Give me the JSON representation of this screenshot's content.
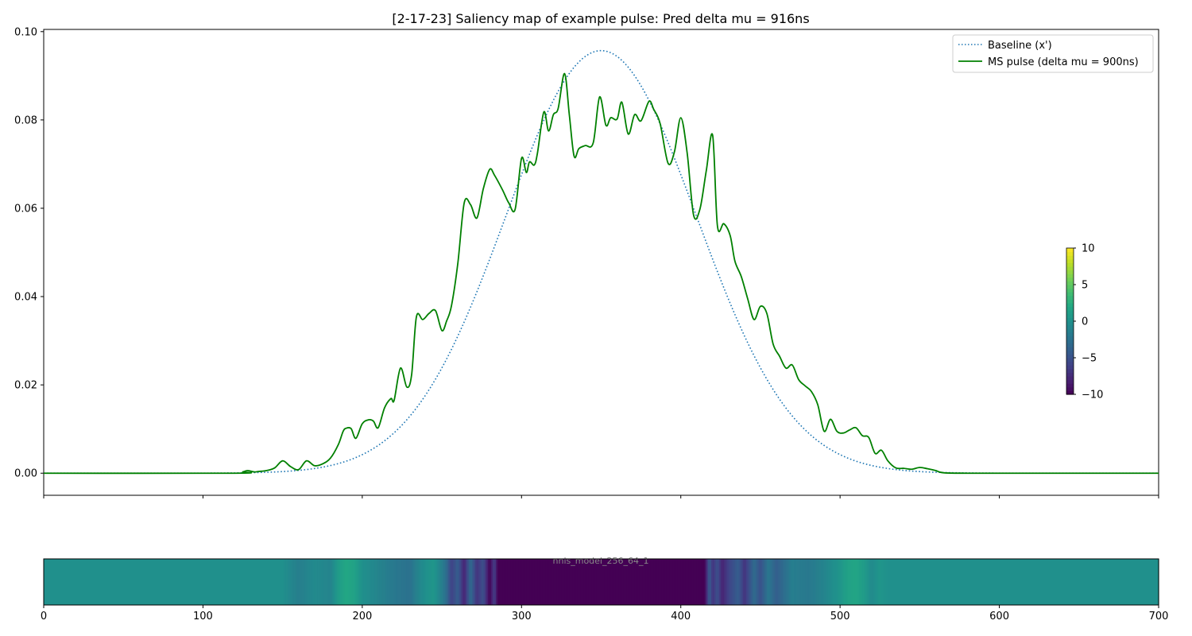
{
  "chart_data": [
    {
      "type": "line",
      "title": "[2-17-23] Saliency map of example pulse: Pred delta mu = 916ns",
      "xlabel": "",
      "ylabel": "",
      "xlim": [
        0,
        700
      ],
      "ylim": [
        -0.005,
        0.1005
      ],
      "x_ticks": [
        0,
        100,
        200,
        300,
        400,
        500,
        600,
        700
      ],
      "x_tick_labels_shown": false,
      "y_ticks": [
        0.0,
        0.02,
        0.04,
        0.06,
        0.08,
        0.1
      ],
      "y_tick_labels": [
        "0.00",
        "0.02",
        "0.04",
        "0.06",
        "0.08",
        "0.10"
      ],
      "grid": false,
      "legend_position": "top-right",
      "series": [
        {
          "name": "Baseline (x')",
          "style": "dotted",
          "color": "#1f77b4",
          "model": "gaussian",
          "amplitude": 0.0957,
          "center": 350,
          "sigma": 60,
          "x": [
            0,
            120,
            150,
            180,
            200,
            220,
            240,
            260,
            280,
            300,
            320,
            340,
            350,
            360,
            380,
            400,
            420,
            440,
            460,
            480,
            500,
            520,
            540,
            560,
            580,
            700
          ],
          "values": [
            0,
            0.0004,
            0.0008,
            0.0023,
            0.0048,
            0.0091,
            0.0163,
            0.0279,
            0.0404,
            0.0674,
            0.0843,
            0.0944,
            0.0957,
            0.0944,
            0.0843,
            0.0674,
            0.0404,
            0.0249,
            0.0138,
            0.0068,
            0.0031,
            0.0012,
            0.0006,
            0.0003,
            0.0001,
            0
          ]
        },
        {
          "name": "MS pulse (delta mu = 900ns)",
          "style": "solid",
          "color": "#008000",
          "x": [
            0,
            120,
            125,
            128,
            132,
            135,
            140,
            145,
            150,
            155,
            160,
            165,
            170,
            175,
            180,
            185,
            188,
            190,
            193,
            196,
            200,
            204,
            207,
            210,
            214,
            218,
            220,
            224,
            228,
            231,
            234,
            238,
            242,
            246,
            250,
            253,
            256,
            260,
            264,
            268,
            272,
            276,
            280,
            283,
            288,
            292,
            296,
            300,
            303,
            305,
            308,
            310,
            314,
            317,
            320,
            323,
            327,
            330,
            333,
            336,
            340,
            345,
            349,
            353,
            356,
            360,
            363,
            367,
            371,
            375,
            380,
            383,
            387,
            392,
            396,
            400,
            404,
            408,
            412,
            416,
            420,
            423,
            427,
            431,
            434,
            438,
            442,
            446,
            450,
            454,
            458,
            462,
            466,
            470,
            474,
            478,
            482,
            486,
            490,
            494,
            498,
            502,
            506,
            510,
            514,
            518,
            522,
            526,
            530,
            535,
            540,
            545,
            550,
            555,
            560,
            565,
            580,
            600,
            700
          ],
          "values": [
            0,
            0,
            0.0003,
            0.0006,
            0.0003,
            0.0004,
            0.0006,
            0.0012,
            0.0028,
            0.0015,
            0.0008,
            0.0028,
            0.0017,
            0.0021,
            0.0034,
            0.0065,
            0.0095,
            0.0102,
            0.0101,
            0.0079,
            0.0112,
            0.0121,
            0.0118,
            0.0103,
            0.0148,
            0.0169,
            0.0165,
            0.0238,
            0.0195,
            0.0223,
            0.0354,
            0.0348,
            0.0362,
            0.0368,
            0.0323,
            0.0345,
            0.0379,
            0.0475,
            0.0612,
            0.0608,
            0.0578,
            0.0644,
            0.0688,
            0.0675,
            0.0642,
            0.0612,
            0.0598,
            0.0713,
            0.0681,
            0.0705,
            0.0698,
            0.0725,
            0.0818,
            0.0775,
            0.0812,
            0.0826,
            0.0905,
            0.0812,
            0.0718,
            0.0735,
            0.0742,
            0.0748,
            0.0852,
            0.0788,
            0.0805,
            0.0802,
            0.084,
            0.0768,
            0.0812,
            0.0798,
            0.0842,
            0.0824,
            0.0792,
            0.0702,
            0.0728,
            0.0805,
            0.0725,
            0.0585,
            0.0598,
            0.0685,
            0.0765,
            0.056,
            0.0565,
            0.0538,
            0.048,
            0.0445,
            0.0395,
            0.0348,
            0.0378,
            0.0362,
            0.0292,
            0.0265,
            0.0238,
            0.0245,
            0.0212,
            0.0198,
            0.0185,
            0.0155,
            0.0095,
            0.0122,
            0.0095,
            0.0091,
            0.0098,
            0.0103,
            0.0085,
            0.0081,
            0.0045,
            0.0052,
            0.0028,
            0.0012,
            0.0011,
            0.0009,
            0.0013,
            0.001,
            0.0006,
            0.0001,
            0,
            0,
            0
          ]
        }
      ]
    },
    {
      "type": "heatmap",
      "title": "",
      "watermark": "nnls_model_256_64_1",
      "xlim": [
        0,
        700
      ],
      "x_ticks": [
        0,
        100,
        200,
        300,
        400,
        500,
        600,
        700
      ],
      "x_tick_labels": [
        "0",
        "100",
        "200",
        "300",
        "400",
        "500",
        "600",
        "700"
      ],
      "colormap": "viridis",
      "vmin": -10,
      "vmax": 10,
      "colorbar_ticks": [
        10,
        5,
        0,
        -5,
        -10
      ],
      "colorbar_tick_labels": [
        "10",
        "5",
        "0",
        "−5",
        "−10"
      ],
      "x": [
        0,
        150,
        160,
        170,
        180,
        185,
        190,
        195,
        200,
        210,
        220,
        230,
        235,
        240,
        245,
        250,
        253,
        256,
        260,
        264,
        268,
        272,
        276,
        280,
        283,
        285,
        300,
        350,
        400,
        415,
        418,
        420,
        423,
        426,
        430,
        436,
        440,
        446,
        450,
        455,
        460,
        470,
        480,
        490,
        500,
        505,
        510,
        515,
        520,
        525,
        530,
        600,
        700
      ],
      "values": [
        0,
        0,
        -1.5,
        -0.5,
        -1,
        1,
        2,
        1.5,
        0,
        -1,
        -2,
        -2.5,
        -1,
        0,
        0.5,
        -1.5,
        -3,
        -6,
        -4,
        -8,
        -3,
        -7,
        -5,
        -10,
        -6,
        -10,
        -10,
        -10,
        -10,
        -10,
        -4,
        -7,
        -5,
        -8,
        -6,
        -4,
        -7,
        -3,
        -5,
        -2,
        -4,
        -1.5,
        -2,
        -1,
        0.5,
        1.5,
        1.8,
        1.0,
        -0.5,
        0.5,
        0,
        0,
        0
      ]
    }
  ]
}
